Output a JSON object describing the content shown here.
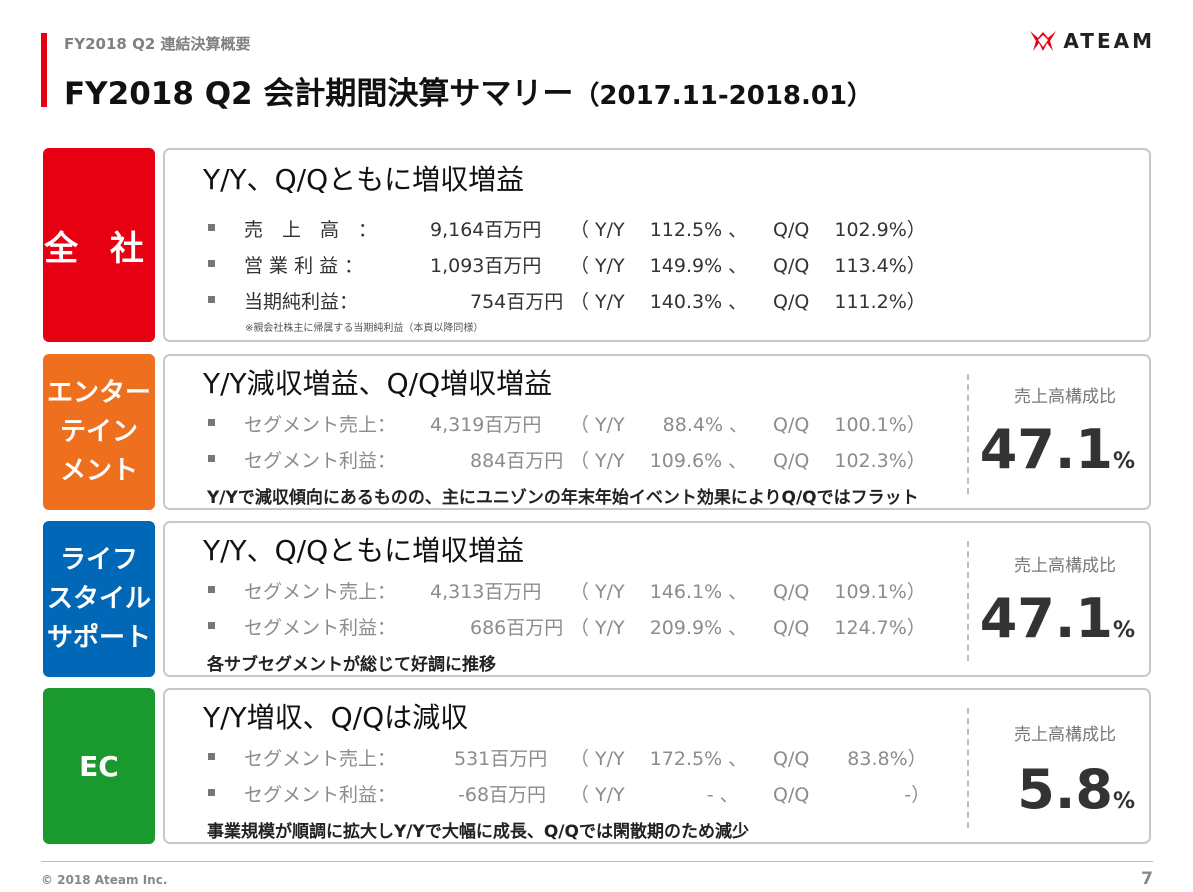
{
  "header": {
    "subtitle": "FY2018 Q2 連結決算概要",
    "title": "FY2018 Q2 会計期間決算サマリー",
    "period": "（2017.11-2018.01）",
    "logo_text": "ATEAM"
  },
  "sections": [
    {
      "label_lines": [
        "全 社"
      ],
      "color": "#e60012",
      "headline": "Y/Y、Q/Qともに増収増益",
      "rows": [
        {
          "name": "売　上　高　：",
          "amount": "9,164百万円",
          "yy": "（ Y/Y　 112.5% 、",
          "qq": "Q/Q　 102.9%）"
        },
        {
          "name": "営 業 利 益 ：",
          "amount": "1,093百万円",
          "yy": "（ Y/Y　 149.9% 、",
          "qq": "Q/Q　 113.4%）"
        },
        {
          "name": "当期純利益：",
          "amount": "754百万円",
          "yy": "（ Y/Y　 140.3% 、",
          "qq": "Q/Q　 111.2%）"
        }
      ],
      "note": "※親会社株主に帰属する当期純利益（本頁以降同様）"
    },
    {
      "label_lines": [
        "エンター",
        "テイン",
        "メント"
      ],
      "color": "#ee6f1d",
      "headline": "Y/Y減収増益、Q/Q増収増益",
      "rows": [
        {
          "name": "セグメント売上：",
          "amount": "4,319百万円",
          "yy": "（ Y/Y　　88.4% 、",
          "qq": "Q/Q　 100.1%）"
        },
        {
          "name": "セグメント利益：",
          "amount": "884百万円",
          "yy": "（ Y/Y　 109.6% 、",
          "qq": "Q/Q　 102.3%）"
        }
      ],
      "comment": "Y/Yで減収傾向にあるものの、主にユニゾンの年末年始イベント効果によりQ/Qではフラット",
      "ratio_label": "売上高構成比",
      "ratio_value": "47.1",
      "ratio_unit": "%"
    },
    {
      "label_lines": [
        "ライフ",
        "スタイル",
        "サポート"
      ],
      "color": "#0068b7",
      "headline": "Y/Y、Q/Qともに増収増益",
      "rows": [
        {
          "name": "セグメント売上：",
          "amount": "4,313百万円",
          "yy": "（ Y/Y　 146.1% 、",
          "qq": "Q/Q　 109.1%）"
        },
        {
          "name": "セグメント利益：",
          "amount": "686百万円",
          "yy": "（ Y/Y　 209.9% 、",
          "qq": "Q/Q　 124.7%）"
        }
      ],
      "comment": "各サブセグメントが総じて好調に推移",
      "ratio_label": "売上高構成比",
      "ratio_value": "47.1",
      "ratio_unit": "%"
    },
    {
      "label_lines": [
        "EC"
      ],
      "color": "#1a9a2e",
      "headline": "Y/Y増収、Q/Qは減収",
      "rows": [
        {
          "name": "セグメント売上：",
          "amount": "531百万円",
          "yy": "（ Y/Y　 172.5% 、",
          "qq": "Q/Q　　83.8%）"
        },
        {
          "name": "セグメント利益：",
          "amount": "-68百万円",
          "yy": "（ Y/Y　　　　 - 、",
          "qq": "Q/Q　　　　　-）"
        }
      ],
      "comment": "事業規模が順調に拡大しY/Yで大幅に成長、Q/Qでは閑散期のため減少",
      "ratio_label": "売上高構成比",
      "ratio_value": "5.8",
      "ratio_unit": "%"
    }
  ],
  "footer": {
    "copyright": "© 2018 Ateam Inc.",
    "page": "7"
  }
}
